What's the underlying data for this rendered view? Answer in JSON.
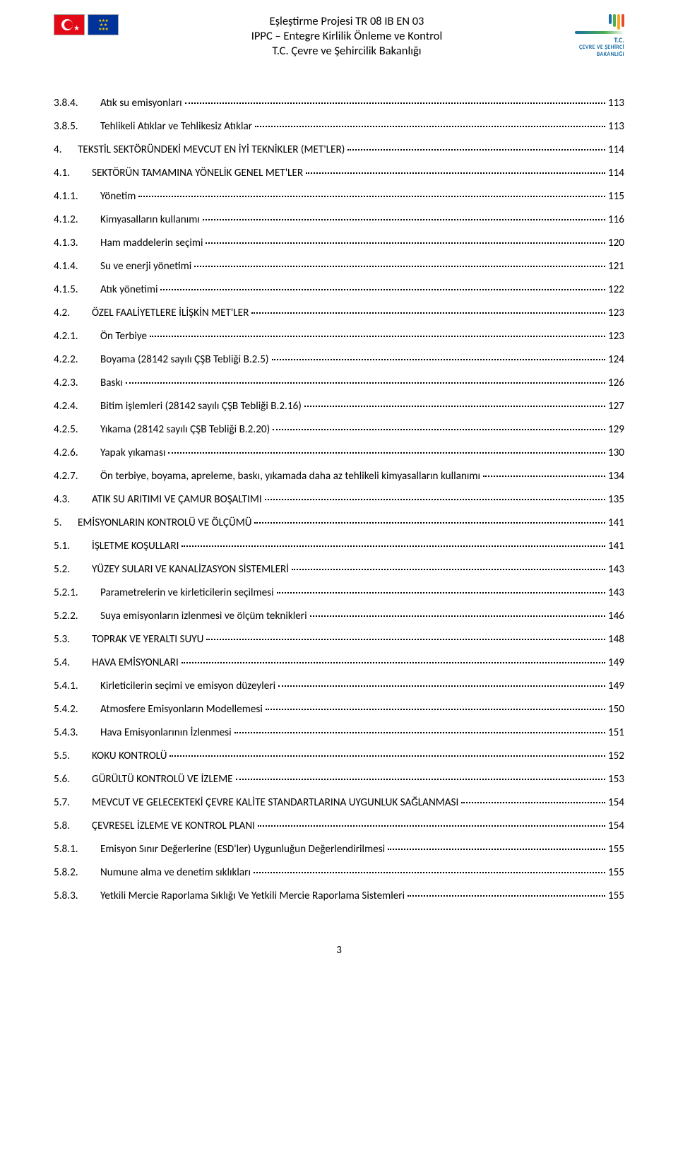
{
  "header": {
    "line1": "Eşleştirme Projesi TR 08 IB EN 03",
    "line2": "IPPC – Entegre Kirlilik Önleme ve Kontrol",
    "line3": "T.C. Çevre ve Şehircilik Bakanlığı"
  },
  "logo": {
    "text1": "T.C.",
    "text2": "ÇEVRE VE ŞEHİRCİ",
    "text3": "BAKANLIĞI"
  },
  "page_number": "3",
  "entries": [
    {
      "level": 3,
      "num": "3.8.4.",
      "title": "Atık su emisyonları",
      "page": "113"
    },
    {
      "level": 3,
      "num": "3.8.5.",
      "title": "Tehlikeli Atıklar ve Tehlikesiz Atıklar",
      "page": "113"
    },
    {
      "level": 1,
      "num": "4.",
      "title": "TEKSTİL SEKTÖRÜNDEKİ MEVCUT EN İYİ TEKNİKLER (MET'LER)",
      "page": "114"
    },
    {
      "level": 2,
      "num": "4.1.",
      "title": "SEKTÖRÜN TAMAMINA YÖNELİK GENEL MET'LER",
      "page": "114"
    },
    {
      "level": 3,
      "num": "4.1.1.",
      "title": "Yönetim",
      "page": "115"
    },
    {
      "level": 3,
      "num": "4.1.2.",
      "title": "Kimyasalların kullanımı",
      "page": "116"
    },
    {
      "level": 3,
      "num": "4.1.3.",
      "title": "Ham maddelerin seçimi",
      "page": "120"
    },
    {
      "level": 3,
      "num": "4.1.4.",
      "title": "Su ve enerji yönetimi",
      "page": "121"
    },
    {
      "level": 3,
      "num": "4.1.5.",
      "title": "Atık yönetimi",
      "page": "122"
    },
    {
      "level": 2,
      "num": "4.2.",
      "title": "ÖZEL FAALİYETLERE İLİŞKİN MET'LER",
      "page": "123"
    },
    {
      "level": 3,
      "num": "4.2.1.",
      "title": "Ön Terbiye",
      "page": "123"
    },
    {
      "level": 3,
      "num": "4.2.2.",
      "title": "Boyama (28142 sayılı ÇŞB Tebliği B.2.5)",
      "page": "124"
    },
    {
      "level": 3,
      "num": "4.2.3.",
      "title": "Baskı",
      "page": "126"
    },
    {
      "level": 3,
      "num": "4.2.4.",
      "title": "Bitim işlemleri   (28142 sayılı ÇŞB Tebliği B.2.16)",
      "page": "127"
    },
    {
      "level": 3,
      "num": "4.2.5.",
      "title": "Yıkama (28142 sayılı ÇŞB Tebliği B.2.20)",
      "page": "129"
    },
    {
      "level": 3,
      "num": "4.2.6.",
      "title": "Yapak yıkaması",
      "page": "130"
    },
    {
      "level": 3,
      "num": "4.2.7.",
      "title": "Ön terbiye, boyama, apreleme, baskı, yıkamada daha az tehlikeli kimyasalların kullanımı",
      "page": "134"
    },
    {
      "level": 2,
      "num": "4.3.",
      "title": "ATIK SU ARITIMI VE ÇAMUR BOŞALTIMI",
      "page": "135"
    },
    {
      "level": 1,
      "num": "5.",
      "title": "EMİSYONLARIN KONTROLÜ VE ÖLÇÜMÜ",
      "page": "141"
    },
    {
      "level": 2,
      "num": "5.1.",
      "title": "İŞLETME KOŞULLARI",
      "page": "141"
    },
    {
      "level": 2,
      "num": "5.2.",
      "title": "YÜZEY SULARI VE KANALİZASYON SİSTEMLERİ",
      "page": "143"
    },
    {
      "level": 3,
      "num": "5.2.1.",
      "title": "Parametrelerin ve kirleticilerin seçilmesi",
      "page": "143"
    },
    {
      "level": 3,
      "num": "5.2.2.",
      "title": "Suya emisyonların izlenmesi ve ölçüm teknikleri",
      "page": "146"
    },
    {
      "level": 2,
      "num": "5.3.",
      "title": "TOPRAK VE YERALTI SUYU",
      "page": "148"
    },
    {
      "level": 2,
      "num": "5.4.",
      "title": "HAVA EMİSYONLARI",
      "page": "149"
    },
    {
      "level": 3,
      "num": "5.4.1.",
      "title": "Kirleticilerin seçimi ve emisyon düzeyleri",
      "page": "149"
    },
    {
      "level": 3,
      "num": "5.4.2.",
      "title": "Atmosfere Emisyonların Modellemesi",
      "page": "150"
    },
    {
      "level": 3,
      "num": "5.4.3.",
      "title": "Hava Emisyonlarının İzlenmesi",
      "page": "151"
    },
    {
      "level": 2,
      "num": "5.5.",
      "title": "KOKU KONTROLÜ",
      "page": "152"
    },
    {
      "level": 2,
      "num": "5.6.",
      "title": "GÜRÜLTÜ KONTROLÜ VE İZLEME",
      "page": "153"
    },
    {
      "level": 2,
      "num": "5.7.",
      "title": "MEVCUT VE GELECEKTEKİ ÇEVRE KALİTE STANDARTLARINA UYGUNLUK SAĞLANMASI",
      "page": "154"
    },
    {
      "level": 2,
      "num": "5.8.",
      "title": "ÇEVRESEL İZLEME VE KONTROL PLANI",
      "page": "154"
    },
    {
      "level": 3,
      "num": "5.8.1.",
      "title": "Emisyon Sınır Değerlerine (ESD'ler) Uygunluğun Değerlendirilmesi",
      "page": "155"
    },
    {
      "level": 3,
      "num": "5.8.2.",
      "title": "Numune alma ve denetim sıklıkları",
      "page": "155"
    },
    {
      "level": 3,
      "num": "5.8.3.",
      "title": "Yetkili Mercie Raporlama Sıklığı Ve Yetkili Mercie Raporlama Sistemleri",
      "page": "155"
    }
  ]
}
